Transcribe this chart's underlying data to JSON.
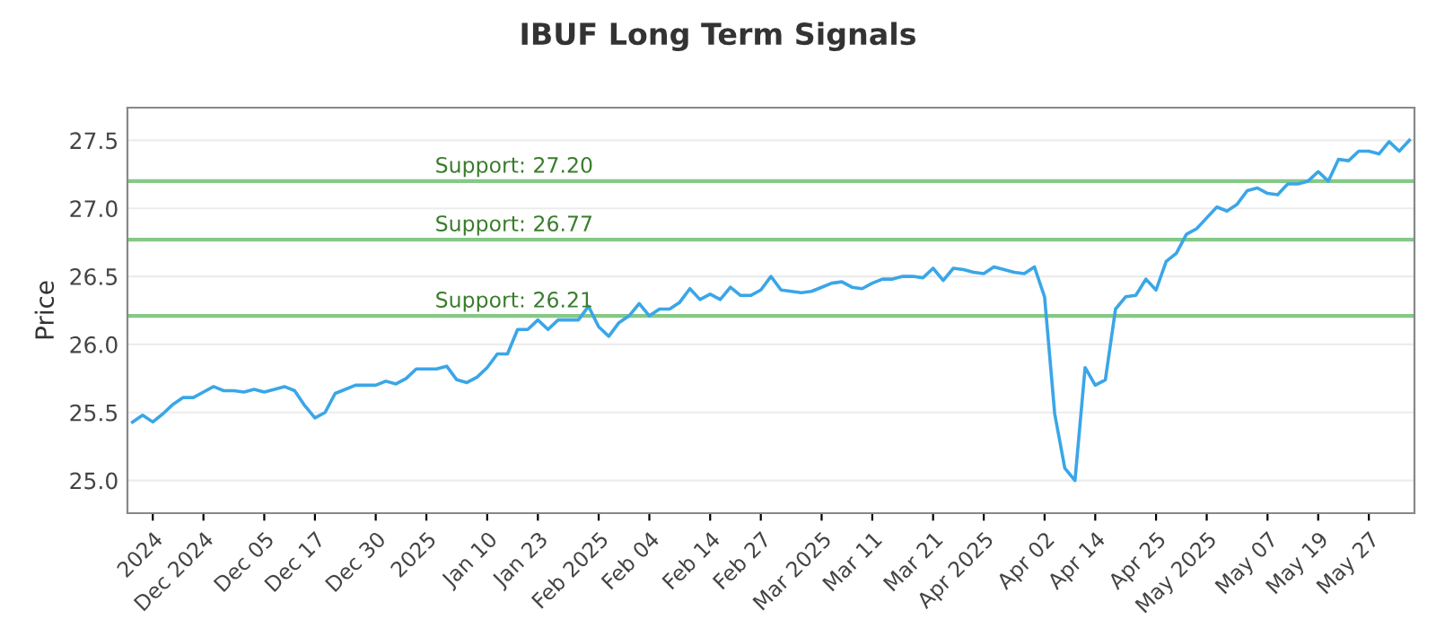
{
  "chart_data": {
    "type": "line",
    "title": "IBUF Long Term Signals",
    "ylabel": "Price",
    "categories": [
      null,
      null,
      "2024",
      null,
      null,
      null,
      null,
      "Dec 2024",
      null,
      null,
      null,
      null,
      null,
      "Dec 05",
      null,
      null,
      null,
      null,
      "Dec 17",
      null,
      null,
      null,
      null,
      null,
      "Dec 30",
      null,
      null,
      null,
      null,
      "2025",
      null,
      null,
      null,
      null,
      null,
      "Jan 10",
      null,
      null,
      null,
      null,
      "Jan 23",
      null,
      null,
      null,
      null,
      null,
      "Feb 2025",
      null,
      null,
      null,
      null,
      "Feb 04",
      null,
      null,
      null,
      null,
      null,
      "Feb 14",
      null,
      null,
      null,
      null,
      "Feb 27",
      null,
      null,
      null,
      null,
      null,
      "Mar 2025",
      null,
      null,
      null,
      null,
      "Mar 11",
      null,
      null,
      null,
      null,
      null,
      "Mar 21",
      null,
      null,
      null,
      null,
      "Apr 2025",
      null,
      null,
      null,
      null,
      null,
      "Apr 02",
      null,
      null,
      null,
      null,
      "Apr 14",
      null,
      null,
      null,
      null,
      null,
      "Apr 25",
      null,
      null,
      null,
      null,
      "May 2025",
      null,
      null,
      null,
      null,
      null,
      "May 07",
      null,
      null,
      null,
      null,
      "May 19",
      null,
      null,
      null,
      null,
      "May 27",
      null,
      null,
      null,
      null
    ],
    "series": [
      {
        "color": "#3aa6e8",
        "values": [
          25.43,
          25.48,
          25.43,
          25.49,
          25.56,
          25.61,
          25.61,
          25.65,
          25.69,
          25.66,
          25.66,
          25.65,
          25.67,
          25.65,
          25.67,
          25.69,
          25.66,
          25.55,
          25.46,
          25.5,
          25.64,
          25.67,
          25.7,
          25.7,
          25.7,
          25.73,
          25.71,
          25.75,
          25.82,
          25.82,
          25.82,
          25.84,
          25.74,
          25.72,
          25.76,
          25.83,
          25.93,
          25.93,
          26.11,
          26.11,
          26.18,
          26.11,
          26.18,
          26.18,
          26.18,
          26.28,
          26.13,
          26.06,
          26.16,
          26.21,
          26.3,
          26.21,
          26.26,
          26.26,
          26.31,
          26.41,
          26.33,
          26.37,
          26.33,
          26.42,
          26.36,
          26.36,
          26.4,
          26.5,
          26.4,
          26.39,
          26.38,
          26.39,
          26.42,
          26.45,
          26.46,
          26.42,
          26.41,
          26.45,
          26.48,
          26.48,
          26.5,
          26.5,
          26.49,
          26.56,
          26.47,
          26.56,
          26.55,
          26.53,
          26.52,
          26.57,
          26.55,
          26.53,
          26.52,
          26.57,
          26.35,
          25.49,
          25.09,
          25.0,
          25.83,
          25.7,
          25.74,
          26.26,
          26.35,
          26.36,
          26.48,
          26.4,
          26.61,
          26.67,
          26.81,
          26.85,
          26.93,
          27.01,
          26.98,
          27.03,
          27.13,
          27.15,
          27.11,
          27.1,
          27.18,
          27.18,
          27.2,
          27.27,
          27.2,
          27.36,
          27.35,
          27.42,
          27.42,
          27.4,
          27.49,
          27.42,
          27.5
        ]
      }
    ],
    "ylim": [
      24.76,
      27.74
    ],
    "yticks": [
      {
        "value": 25,
        "label": "25.0"
      },
      25.5,
      {
        "value": 26,
        "label": "26.0"
      },
      26.5,
      {
        "value": 27,
        "label": "27.0"
      },
      27.5
    ],
    "grid": "y",
    "marker": "none",
    "line_style": "solid",
    "ref_lines": [
      {
        "axis": "y",
        "value": 27.2,
        "label": "Support: 27.20",
        "color": "#86c886"
      },
      {
        "axis": "y",
        "value": 26.77,
        "label": "Support: 26.77",
        "color": "#86c886"
      },
      {
        "axis": "y",
        "value": 26.21,
        "label": "Support: 26.21",
        "color": "#86c886"
      }
    ]
  }
}
